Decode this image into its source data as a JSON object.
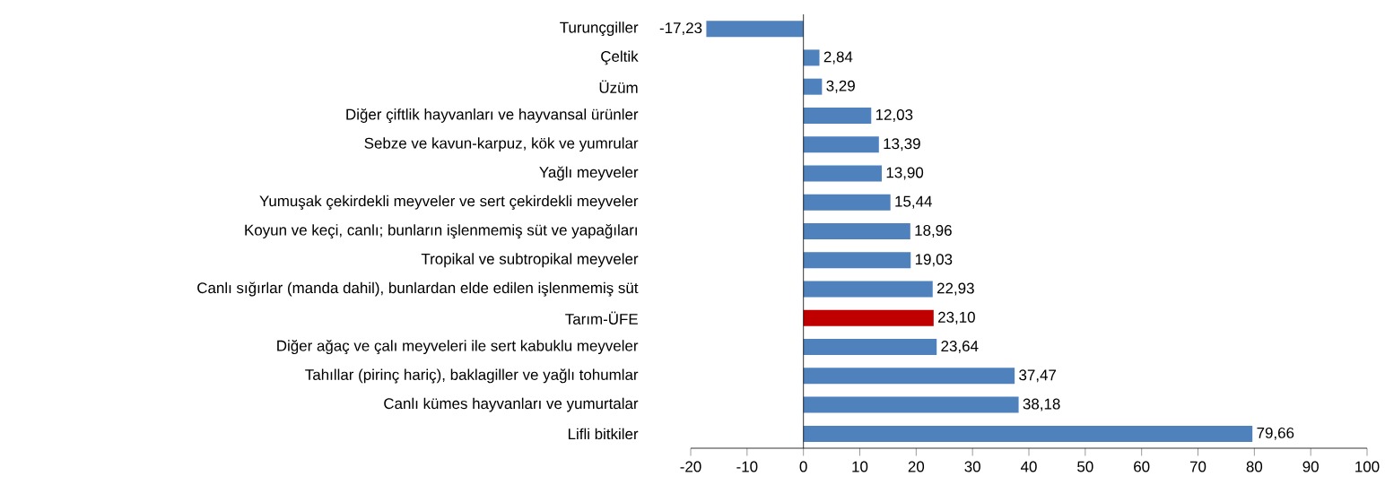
{
  "chart_data": {
    "type": "bar",
    "orientation": "horizontal",
    "categories": [
      "Turunçgiller",
      "Çeltik",
      "Üzüm",
      "Diğer çiftlik hayvanları ve hayvansal ürünler",
      "Sebze ve kavun-karpuz, kök ve yumrular",
      "Yağlı meyveler",
      "Yumuşak çekirdekli meyveler ve sert çekirdekli meyveler",
      "Koyun ve keçi, canlı; bunların işlenmemiş süt ve yapağıları",
      "Tropikal ve subtropikal meyveler",
      "Canlı sığırlar (manda dahil), bunlardan elde edilen işlenmemiş süt",
      "Tarım-ÜFE",
      "Diğer ağaç ve çalı meyveleri ile sert kabuklu meyveler",
      "Tahıllar (pirinç hariç), baklagiller ve yağlı tohumlar",
      "Canlı kümes hayvanları ve yumurtalar",
      "Lifli bitkiler"
    ],
    "values": [
      -17.23,
      2.84,
      3.29,
      12.03,
      13.39,
      13.9,
      15.44,
      18.96,
      19.03,
      22.93,
      23.1,
      23.64,
      37.47,
      38.18,
      79.66
    ],
    "value_labels": [
      "-17,23",
      "2,84",
      "3,29",
      "12,03",
      "13,39",
      "13,90",
      "15,44",
      "18,96",
      "19,03",
      "22,93",
      "23,10",
      "23,64",
      "37,47",
      "38,18",
      "79,66"
    ],
    "colors": [
      "#4f81bd",
      "#4f81bd",
      "#4f81bd",
      "#4f81bd",
      "#4f81bd",
      "#4f81bd",
      "#4f81bd",
      "#4f81bd",
      "#4f81bd",
      "#4f81bd",
      "#c00000",
      "#4f81bd",
      "#4f81bd",
      "#4f81bd",
      "#4f81bd"
    ],
    "xlim": [
      -20,
      100
    ],
    "xticks": [
      -20,
      -10,
      0,
      10,
      20,
      30,
      40,
      50,
      60,
      70,
      80,
      90,
      100
    ]
  }
}
